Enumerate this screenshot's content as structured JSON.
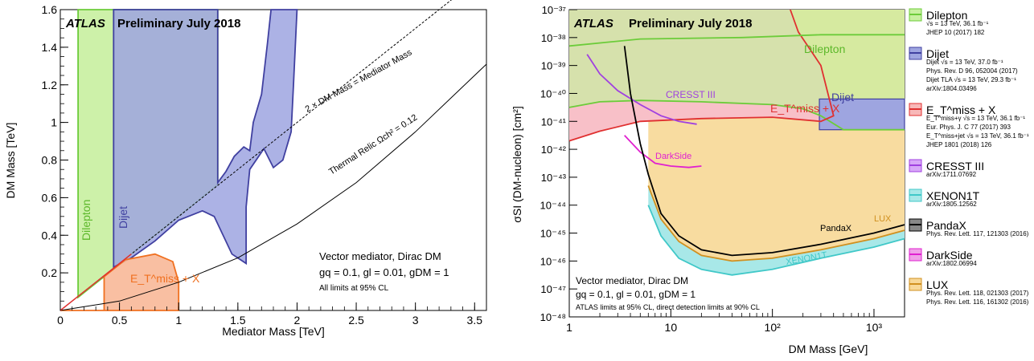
{
  "chart_data": [
    {
      "type": "area",
      "xlabel": "Mediator Mass [TeV]",
      "ylabel": "DM Mass [TeV]",
      "xlim": [
        0,
        3.6
      ],
      "ylim": [
        0,
        1.6
      ],
      "x_ticks": [
        "0",
        "0.5",
        "1",
        "1.5",
        "2",
        "2.5",
        "3",
        "3.5"
      ],
      "y_ticks": [
        "0.2",
        "0.4",
        "0.6",
        "0.8",
        "1",
        "1.2",
        "1.4",
        "1.6"
      ],
      "atlas_label": "ATLAS",
      "prelim_label": "Preliminary July 2018",
      "annotations": {
        "diag_line": "2 × DM Mass = Mediator Mass",
        "relic_line": "Thermal Relic Ωch² = 0.12",
        "model_line1": "Vector mediator, Dirac DM",
        "model_line2": "gq = 0.1, gl = 0.01, gDM = 1",
        "model_line3": "All limits at 95% CL"
      },
      "series": [
        {
          "name": "Dilepton",
          "color": "#6ccc3a",
          "fill": "#c8f0a0",
          "points": [
            [
              0.15,
              0.15
            ],
            [
              0.15,
              1.6
            ],
            [
              1.33,
              1.6
            ],
            [
              1.33,
              0.67
            ],
            [
              1.0,
              0.5
            ],
            [
              0.6,
              0.3
            ],
            [
              0.37,
              0.18
            ],
            [
              0.15,
              0.07
            ]
          ]
        },
        {
          "name": "Dijet",
          "color": "#4040a0",
          "fill": "#9ea5e0",
          "points": [
            [
              0.45,
              0.23
            ],
            [
              0.45,
              1.6
            ],
            [
              1.33,
              1.6
            ],
            [
              1.33,
              0.68
            ],
            [
              1.4,
              0.74
            ],
            [
              1.47,
              0.82
            ],
            [
              1.55,
              0.87
            ],
            [
              1.6,
              0.85
            ],
            [
              1.63,
              1.0
            ],
            [
              1.7,
              1.15
            ],
            [
              1.75,
              1.42
            ],
            [
              1.78,
              1.6
            ],
            [
              2.0,
              1.6
            ],
            [
              1.97,
              1.2
            ],
            [
              1.95,
              0.95
            ],
            [
              1.88,
              0.8
            ],
            [
              1.8,
              0.76
            ],
            [
              1.72,
              0.86
            ],
            [
              1.6,
              0.75
            ],
            [
              1.57,
              0.55
            ],
            [
              1.57,
              0.25
            ],
            [
              1.45,
              0.3
            ],
            [
              1.3,
              0.5
            ],
            [
              1.2,
              0.53
            ],
            [
              1.0,
              0.48
            ],
            [
              0.8,
              0.37
            ],
            [
              0.6,
              0.28
            ]
          ]
        },
        {
          "name": "E_T^miss + X",
          "color": "#f07020",
          "fill": "#f8b898",
          "points": [
            [
              0.0,
              0.0
            ],
            [
              0.37,
              0.0
            ],
            [
              0.37,
              0.18
            ],
            [
              0.55,
              0.27
            ],
            [
              0.8,
              0.3
            ],
            [
              0.95,
              0.26
            ],
            [
              1.0,
              0.15
            ],
            [
              1.0,
              0.0
            ],
            [
              0.0,
              0.0
            ]
          ]
        }
      ],
      "diag_line": [
        [
          0,
          0
        ],
        [
          3.6,
          1.8
        ]
      ],
      "relic_line": [
        [
          0,
          0
        ],
        [
          0.5,
          0.05
        ],
        [
          1,
          0.15
        ],
        [
          1.5,
          0.28
        ],
        [
          2,
          0.46
        ],
        [
          2.5,
          0.68
        ],
        [
          3,
          0.95
        ],
        [
          3.5,
          1.25
        ],
        [
          3.6,
          1.31
        ]
      ]
    },
    {
      "type": "area",
      "xlabel": "DM Mass [GeV]",
      "ylabel": "σSI (DM-nucleon) [cm²]",
      "xscale": "log",
      "yscale": "log",
      "xlim": [
        1,
        2000
      ],
      "ylim": [
        1e-48,
        1e-37
      ],
      "x_ticks": [
        {
          "label": "1",
          "v": 1
        },
        {
          "label": "10",
          "v": 10
        },
        {
          "label": "10²",
          "v": 100
        },
        {
          "label": "10³",
          "v": 1000
        }
      ],
      "y_ticks": [
        "10⁻³⁷",
        "10⁻³⁸",
        "10⁻³⁹",
        "10⁻⁴⁰",
        "10⁻⁴¹",
        "10⁻⁴²",
        "10⁻⁴³",
        "10⁻⁴⁴",
        "10⁻⁴⁵",
        "10⁻⁴⁶",
        "10⁻⁴⁷",
        "10⁻⁴⁸"
      ],
      "atlas_label": "ATLAS",
      "prelim_label": "Preliminary July 2018",
      "annotations": {
        "model_line1": "Vector mediator, Dirac DM",
        "model_line2": "gq = 0.1, gl = 0.01, gDM = 1",
        "model_line3": "ATLAS limits at 95% CL, direct detection limits at 90% CL"
      },
      "in_plot_labels": {
        "dilepton": "Dilepton",
        "dijet": "Dijet",
        "etmiss": "E_T^miss + X",
        "cresst": "CRESST III",
        "darkside": "DarkSide",
        "pandax": "PandaX",
        "lux": "LUX",
        "xenon": "XENON1T"
      },
      "series": [
        {
          "name": "Dilepton",
          "color": "#6ccc3a",
          "line": [
            [
              1,
              -40.5
            ],
            [
              2,
              -40.3
            ],
            [
              5,
              -40.25
            ],
            [
              20,
              -40.3
            ],
            [
              100,
              -40.4
            ],
            [
              200,
              -40.55
            ],
            [
              300,
              -40.8
            ],
            [
              500,
              -41.3
            ],
            [
              2000,
              -41.3
            ]
          ]
        },
        {
          "name": "Dijet",
          "color": "#4040a0",
          "box": [
            [
              290,
              -40.2
            ],
            [
              2000,
              -41.3
            ]
          ]
        },
        {
          "name": "E_T^miss + X",
          "color": "#e03030",
          "line": [
            [
              1,
              -41.7
            ],
            [
              2,
              -41.35
            ],
            [
              5,
              -41.0
            ],
            [
              20,
              -40.9
            ],
            [
              100,
              -40.85
            ],
            [
              300,
              -41.0
            ],
            [
              400,
              -40.8
            ],
            [
              300,
              -39.0
            ],
            [
              180,
              -37.8
            ],
            [
              150,
              -37.0
            ]
          ]
        },
        {
          "name": "CRESST III",
          "color": "#a040e0",
          "line": [
            [
              1.5,
              -38.6
            ],
            [
              2,
              -39.3
            ],
            [
              3,
              -39.9
            ],
            [
              5,
              -40.4
            ],
            [
              8,
              -40.8
            ],
            [
              12,
              -41.0
            ],
            [
              18,
              -41.1
            ]
          ]
        },
        {
          "name": "DarkSide",
          "color": "#e020d0",
          "line": [
            [
              3.5,
              -41.5
            ],
            [
              5,
              -42.1
            ],
            [
              7,
              -42.5
            ],
            [
              10,
              -42.6
            ],
            [
              15,
              -42.65
            ],
            [
              20,
              -42.6
            ]
          ]
        },
        {
          "name": "PandaX",
          "color": "#000000",
          "line": [
            [
              3.5,
              -38.3
            ],
            [
              4,
              -40.0
            ],
            [
              5,
              -41.8
            ],
            [
              6,
              -42.9
            ],
            [
              8,
              -44.3
            ],
            [
              12,
              -45.1
            ],
            [
              20,
              -45.6
            ],
            [
              40,
              -45.8
            ],
            [
              100,
              -45.7
            ],
            [
              300,
              -45.4
            ],
            [
              1000,
              -45.0
            ],
            [
              2000,
              -44.7
            ]
          ]
        },
        {
          "name": "LUX",
          "color": "#d09020",
          "line": [
            [
              6,
              -43.3
            ],
            [
              8,
              -44.5
            ],
            [
              12,
              -45.3
            ],
            [
              20,
              -45.8
            ],
            [
              40,
              -46.0
            ],
            [
              100,
              -45.9
            ],
            [
              300,
              -45.6
            ],
            [
              1000,
              -45.2
            ],
            [
              2000,
              -44.9
            ]
          ]
        },
        {
          "name": "XENON1T",
          "color": "#40c8c8",
          "line": [
            [
              6,
              -44.0
            ],
            [
              8,
              -45.1
            ],
            [
              12,
              -45.9
            ],
            [
              20,
              -46.3
            ],
            [
              40,
              -46.5
            ],
            [
              100,
              -46.3
            ],
            [
              300,
              -45.9
            ],
            [
              1000,
              -45.5
            ],
            [
              2000,
              -45.2
            ]
          ]
        }
      ]
    }
  ],
  "legend": {
    "items": [
      {
        "label": "Dilepton",
        "color": "#6ccc3a",
        "fill": "#c8f0a0",
        "notes": [
          "√s = 13 TeV, 36.1 fb⁻¹",
          "JHEP 10 (2017) 182"
        ]
      },
      {
        "label": "Dijet",
        "color": "#4040a0",
        "fill": "#9ea5e0",
        "notes": [
          "Dijet √s = 13 TeV, 37.0 fb⁻¹",
          "Phys. Rev. D 96, 052004 (2017)",
          "Dijet TLA √s = 13 TeV, 29.3 fb⁻¹",
          "arXiv:1804.03496"
        ]
      },
      {
        "label": "E_T^miss + X",
        "color": "#e03030",
        "fill": "#f8b8b8",
        "notes": [
          "E_T^miss+γ √s = 13 TeV, 36.1 fb⁻¹",
          "Eur. Phys. J. C 77 (2017) 393",
          "E_T^miss+jet √s = 13 TeV, 36.1 fb⁻¹",
          "JHEP 1801 (2018) 126"
        ]
      },
      {
        "label": "CRESST III",
        "color": "#a040e0",
        "fill": "#d8a8f8",
        "notes": [
          "arXiv:1711.07692"
        ]
      },
      {
        "label": "XENON1T",
        "color": "#40c8c8",
        "fill": "#a8e8e8",
        "notes": [
          "arXiv:1805.12562"
        ]
      },
      {
        "label": "PandaX",
        "color": "#000000",
        "fill": "#888888",
        "notes": [
          "Phys. Rev. Lett. 117, 121303 (2016)"
        ]
      },
      {
        "label": "DarkSide",
        "color": "#e020d0",
        "fill": "#f0a0e8",
        "notes": [
          "arXiv:1802.06994"
        ]
      },
      {
        "label": "LUX",
        "color": "#d09020",
        "fill": "#f8d898",
        "notes": [
          "Phys. Rev. Lett. 118, 021303 (2017)",
          "Phys. Rev. Lett. 116, 161302 (2016)"
        ]
      }
    ]
  }
}
